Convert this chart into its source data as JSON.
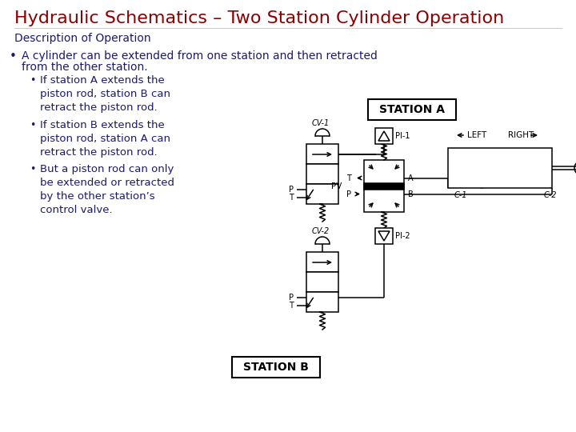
{
  "title": "Hydraulic Schematics – Two Station Cylinder Operation",
  "title_color": "#8B0000",
  "title_fontsize": 16,
  "bg_color": "#FFFFFF",
  "desc_header": "Description of Operation",
  "bullet1_line1": "A cylinder can be extended from one station and then retracted",
  "bullet1_line2": "from the other station.",
  "sub_bullet1": "If station A extends the\npiston rod, station B can\nretract the piston rod.",
  "sub_bullet2": "If station B extends the\npiston rod, station A can\nretract the piston rod.",
  "sub_bullet3": "But a piston rod can only\nbe extended or retracted\nby the other station’s\ncontrol valve.",
  "station_a_label": "STATION A",
  "station_b_label": "STATION B",
  "text_color": "#1a1a6e",
  "schematic_color": "#000000",
  "gray_color": "#666666",
  "title_font": "Franklin Gothic Medium",
  "body_font": "Franklin Gothic Medium"
}
